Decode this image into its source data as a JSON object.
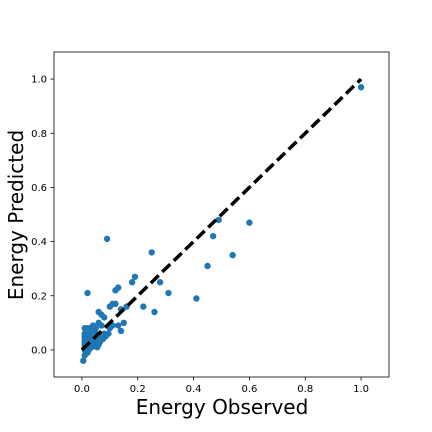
{
  "chart_data": {
    "type": "scatter",
    "title": "",
    "xlabel": "Energy Observed",
    "ylabel": "Energy Predicted",
    "xlim": [
      -0.1,
      1.1
    ],
    "ylim": [
      -0.1,
      1.1
    ],
    "xticks": [
      "0.0",
      "0.2",
      "0.4",
      "0.6",
      "0.8",
      "1.0"
    ],
    "yticks": [
      "0.0",
      "0.2",
      "0.4",
      "0.6",
      "0.8",
      "1.0"
    ],
    "grid": false,
    "point_color": "#1f77b4",
    "reference_line": {
      "style": "dashed",
      "color": "#000000",
      "from": [
        0.0,
        0.0
      ],
      "to": [
        1.0,
        1.0
      ]
    },
    "series": [
      {
        "points": [
          [
            1.0,
            0.97
          ],
          [
            0.6,
            0.47
          ],
          [
            0.54,
            0.35
          ],
          [
            0.49,
            0.48
          ],
          [
            0.47,
            0.42
          ],
          [
            0.45,
            0.31
          ],
          [
            0.41,
            0.19
          ],
          [
            0.31,
            0.21
          ],
          [
            0.28,
            0.25
          ],
          [
            0.26,
            0.14
          ],
          [
            0.25,
            0.36
          ],
          [
            0.22,
            0.16
          ],
          [
            0.19,
            0.27
          ],
          [
            0.18,
            0.25
          ],
          [
            0.16,
            0.16
          ],
          [
            0.14,
            0.15
          ],
          [
            0.13,
            0.23
          ],
          [
            0.12,
            0.22
          ],
          [
            0.12,
            0.17
          ],
          [
            0.11,
            0.17
          ],
          [
            0.1,
            0.16
          ],
          [
            0.1,
            0.08
          ],
          [
            0.09,
            0.41
          ],
          [
            0.13,
            0.09
          ],
          [
            0.14,
            0.07
          ],
          [
            0.08,
            0.12
          ],
          [
            0.07,
            0.09
          ],
          [
            0.07,
            0.13
          ],
          [
            0.06,
            0.14
          ],
          [
            0.06,
            0.1
          ],
          [
            0.05,
            0.08
          ],
          [
            0.05,
            0.06
          ],
          [
            0.04,
            0.09
          ],
          [
            0.04,
            0.07
          ],
          [
            0.03,
            0.08
          ],
          [
            0.03,
            0.05
          ],
          [
            0.03,
            0.03
          ],
          [
            0.02,
            0.21
          ],
          [
            0.02,
            0.08
          ],
          [
            0.02,
            0.06
          ],
          [
            0.02,
            0.04
          ],
          [
            0.02,
            0.02
          ],
          [
            0.01,
            0.08
          ],
          [
            0.01,
            0.06
          ],
          [
            0.01,
            0.05
          ],
          [
            0.01,
            0.04
          ],
          [
            0.01,
            0.03
          ],
          [
            0.01,
            0.02
          ],
          [
            0.01,
            0.0
          ],
          [
            0.01,
            -0.02
          ],
          [
            0.005,
            -0.04
          ],
          [
            0.015,
            -0.01
          ],
          [
            0.025,
            0.0
          ],
          [
            0.035,
            0.01
          ],
          [
            0.045,
            0.02
          ],
          [
            0.055,
            0.01
          ],
          [
            0.065,
            0.03
          ],
          [
            0.075,
            0.04
          ],
          [
            0.085,
            0.05
          ],
          [
            0.095,
            0.06
          ],
          [
            0.06,
            0.02
          ],
          [
            0.04,
            0.03
          ],
          [
            0.03,
            0.07
          ],
          [
            0.05,
            0.04
          ],
          [
            0.08,
            0.06
          ],
          [
            0.02,
            -0.01
          ],
          [
            0.01,
            0.01
          ],
          [
            0.07,
            0.05
          ],
          [
            0.11,
            0.09
          ],
          [
            0.15,
            0.1
          ]
        ]
      }
    ]
  }
}
